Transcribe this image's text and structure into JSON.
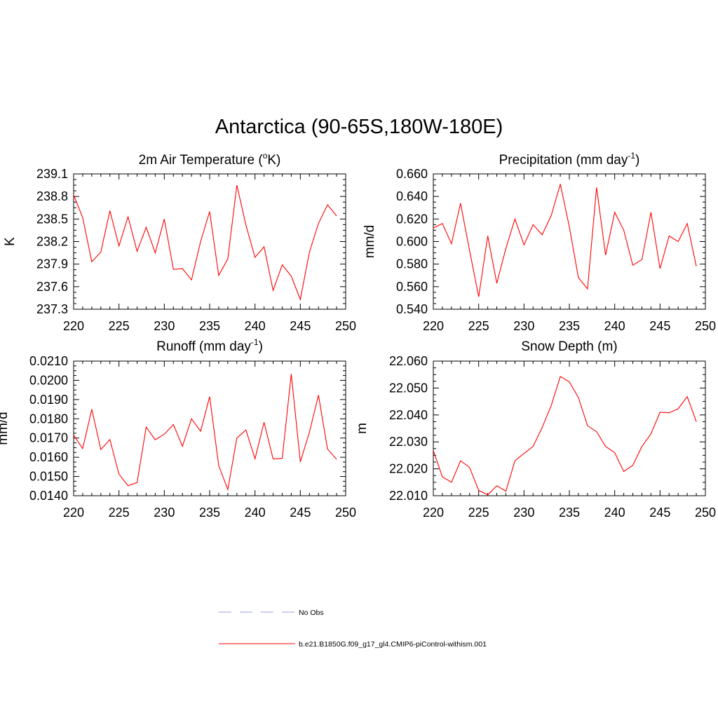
{
  "title": "Antarctica (90-65S,180W-180E)",
  "legend": [
    {
      "label": "No Obs",
      "color": "#9a9aee",
      "dash": true
    },
    {
      "label": "b.e21.B1850G.f09_g17_gl4.CMIP6-piControl-withism.001",
      "color": "#ff0000",
      "dash": false
    }
  ],
  "chart_data": [
    {
      "type": "line",
      "title": "2m Air Temperature (",
      "title_sup": "o",
      "title_after": "K)",
      "ylabel": "K",
      "xlim": [
        220,
        250
      ],
      "ylim": [
        237.3,
        239.1
      ],
      "xticks": [
        "220",
        "225",
        "230",
        "235",
        "240",
        "245",
        "250"
      ],
      "yticks": [
        "237.3",
        "237.6",
        "237.9",
        "238.2",
        "238.5",
        "238.8",
        "239.1"
      ],
      "series": [
        {
          "color": "#ff0000",
          "x": [
            220,
            221,
            222,
            223,
            224,
            225,
            226,
            227,
            228,
            229,
            230,
            231,
            232,
            233,
            234,
            235,
            236,
            237,
            238,
            239,
            240,
            241,
            242,
            243,
            244,
            245,
            246,
            247,
            248,
            249
          ],
          "values": [
            238.82,
            238.52,
            237.93,
            238.06,
            238.61,
            238.14,
            238.53,
            238.07,
            238.39,
            238.05,
            238.5,
            237.83,
            237.84,
            237.69,
            238.2,
            238.6,
            237.75,
            237.97,
            238.95,
            238.42,
            237.99,
            238.13,
            237.55,
            237.89,
            237.74,
            237.43,
            238.06,
            238.44,
            238.69,
            238.54
          ]
        }
      ]
    },
    {
      "type": "line",
      "title": "Precipitation (mm day",
      "title_sup": "-1",
      "title_after": ")",
      "ylabel": "mm/d",
      "xlim": [
        220,
        250
      ],
      "ylim": [
        0.54,
        0.66
      ],
      "xticks": [
        "220",
        "225",
        "230",
        "235",
        "240",
        "245",
        "250"
      ],
      "yticks": [
        "0.540",
        "0.560",
        "0.580",
        "0.600",
        "0.620",
        "0.640",
        "0.660"
      ],
      "series": [
        {
          "color": "#ff0000",
          "x": [
            220,
            221,
            222,
            223,
            224,
            225,
            226,
            227,
            228,
            229,
            230,
            231,
            232,
            233,
            234,
            235,
            236,
            237,
            238,
            239,
            240,
            241,
            242,
            243,
            244,
            245,
            246,
            247,
            248,
            249
          ],
          "values": [
            0.612,
            0.616,
            0.598,
            0.634,
            0.592,
            0.551,
            0.605,
            0.563,
            0.594,
            0.62,
            0.597,
            0.615,
            0.606,
            0.623,
            0.651,
            0.613,
            0.568,
            0.558,
            0.648,
            0.588,
            0.626,
            0.61,
            0.579,
            0.584,
            0.626,
            0.576,
            0.605,
            0.6,
            0.616,
            0.578
          ]
        }
      ]
    },
    {
      "type": "line",
      "title": "Runoff (mm day",
      "title_sup": "-1",
      "title_after": ")",
      "ylabel": "mm/d",
      "xlim": [
        220,
        250
      ],
      "ylim": [
        0.014,
        0.021
      ],
      "xticks": [
        "220",
        "225",
        "230",
        "235",
        "240",
        "245",
        "250"
      ],
      "yticks": [
        "0.0140",
        "0.0150",
        "0.0160",
        "0.0170",
        "0.0180",
        "0.0190",
        "0.0200",
        "0.0210"
      ],
      "series": [
        {
          "color": "#ff0000",
          "x": [
            220,
            221,
            222,
            223,
            224,
            225,
            226,
            227,
            228,
            229,
            230,
            231,
            232,
            233,
            234,
            235,
            236,
            237,
            238,
            239,
            240,
            241,
            242,
            243,
            244,
            245,
            246,
            247,
            248,
            249
          ],
          "values": [
            0.01715,
            0.01645,
            0.0185,
            0.0164,
            0.01692,
            0.01512,
            0.01452,
            0.01468,
            0.01757,
            0.01691,
            0.0172,
            0.0177,
            0.01657,
            0.018,
            0.01735,
            0.01915,
            0.01557,
            0.01432,
            0.017,
            0.01742,
            0.01592,
            0.01782,
            0.01591,
            0.01594,
            0.02033,
            0.01576,
            0.0173,
            0.01923,
            0.01643,
            0.01589
          ]
        }
      ]
    },
    {
      "type": "line",
      "title": "Snow Depth (m)",
      "title_sup": "",
      "title_after": "",
      "ylabel": "m",
      "xlim": [
        220,
        250
      ],
      "ylim": [
        22.01,
        22.06
      ],
      "xticks": [
        "220",
        "225",
        "230",
        "235",
        "240",
        "245",
        "250"
      ],
      "yticks": [
        "22.010",
        "22.020",
        "22.030",
        "22.040",
        "22.050",
        "22.060"
      ],
      "series": [
        {
          "color": "#ff0000",
          "x": [
            220,
            221,
            222,
            223,
            224,
            225,
            226,
            227,
            228,
            229,
            230,
            231,
            232,
            233,
            234,
            235,
            236,
            237,
            238,
            239,
            240,
            241,
            242,
            243,
            244,
            245,
            246,
            247,
            248,
            249
          ],
          "values": [
            22.0268,
            22.017,
            22.015,
            22.023,
            22.0205,
            22.012,
            22.0103,
            22.0137,
            22.0117,
            22.023,
            22.0257,
            22.0283,
            22.0353,
            22.0435,
            22.0543,
            22.0523,
            22.0465,
            22.036,
            22.0338,
            22.0283,
            22.026,
            22.019,
            22.0213,
            22.0283,
            22.033,
            22.041,
            22.0408,
            22.0423,
            22.0468,
            22.0375
          ]
        }
      ]
    }
  ]
}
